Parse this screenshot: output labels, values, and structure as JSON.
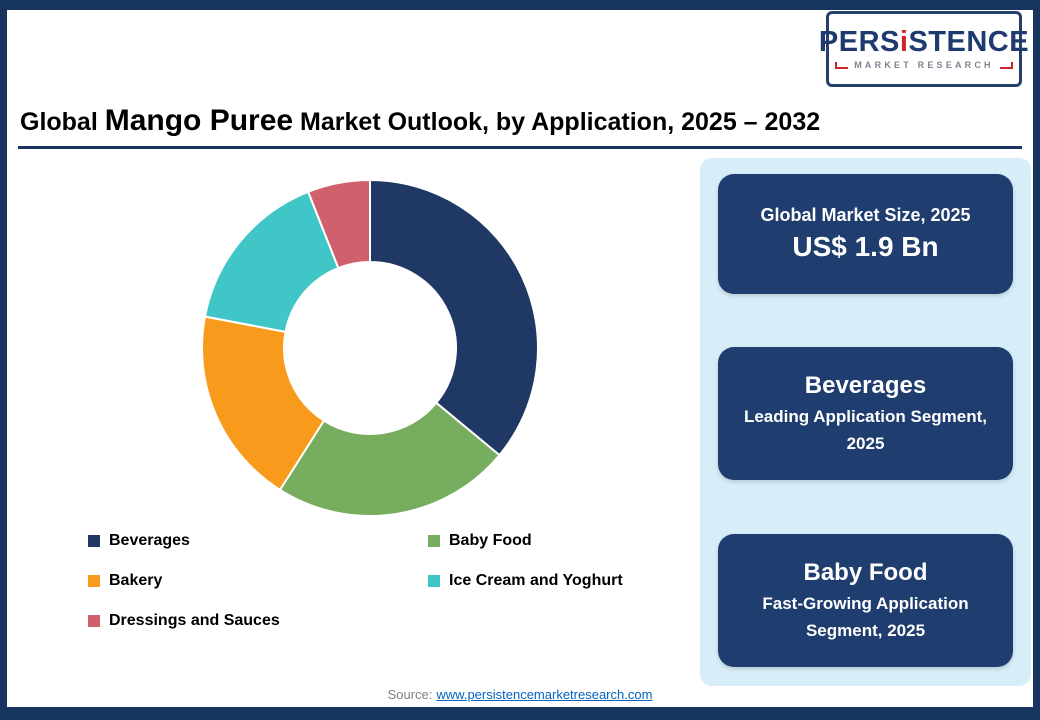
{
  "logo": {
    "brand_pre": "PERS",
    "brand_i": "i",
    "brand_post": "STENCE",
    "tagline": "MARKET RESEARCH"
  },
  "title": {
    "prefix": "Global ",
    "emphasis": "Mango Puree",
    "suffix": " Market Outlook, by Application, 2025 – 2032"
  },
  "chart_data": {
    "type": "pie",
    "variant": "donut",
    "title": "Global Mango Puree Market Outlook, by Application, 2025 – 2032",
    "categories": [
      "Beverages",
      "Baby Food",
      "Bakery",
      "Ice Cream and Yoghurt",
      "Dressings and Sauces"
    ],
    "values": [
      36,
      23,
      19,
      16,
      6
    ],
    "colors": [
      "#1f3864",
      "#77ad5e",
      "#f89b1c",
      "#40c6c6",
      "#d0606b"
    ],
    "start_angle_deg": 0,
    "direction": "clockwise",
    "donut_hole_ratio": 0.51,
    "legend_position": "bottom"
  },
  "highlights": [
    {
      "title": "Global Market Size, 2025",
      "value": "US$ 1.9 Bn"
    },
    {
      "title": "Beverages",
      "subtitle": "Leading Application Segment, 2025"
    },
    {
      "title": "Baby Food",
      "subtitle": "Fast-Growing Application Segment, 2025"
    }
  ],
  "source": {
    "label": "Source:",
    "link_text": "www.persistencemarketresearch.com"
  },
  "colors": {
    "navy_frame": "#17355f",
    "navy_box": "#1f3d6e",
    "panel_bg": "#d7edf8",
    "link": "#0563c1",
    "logo_red": "#cf2229"
  }
}
